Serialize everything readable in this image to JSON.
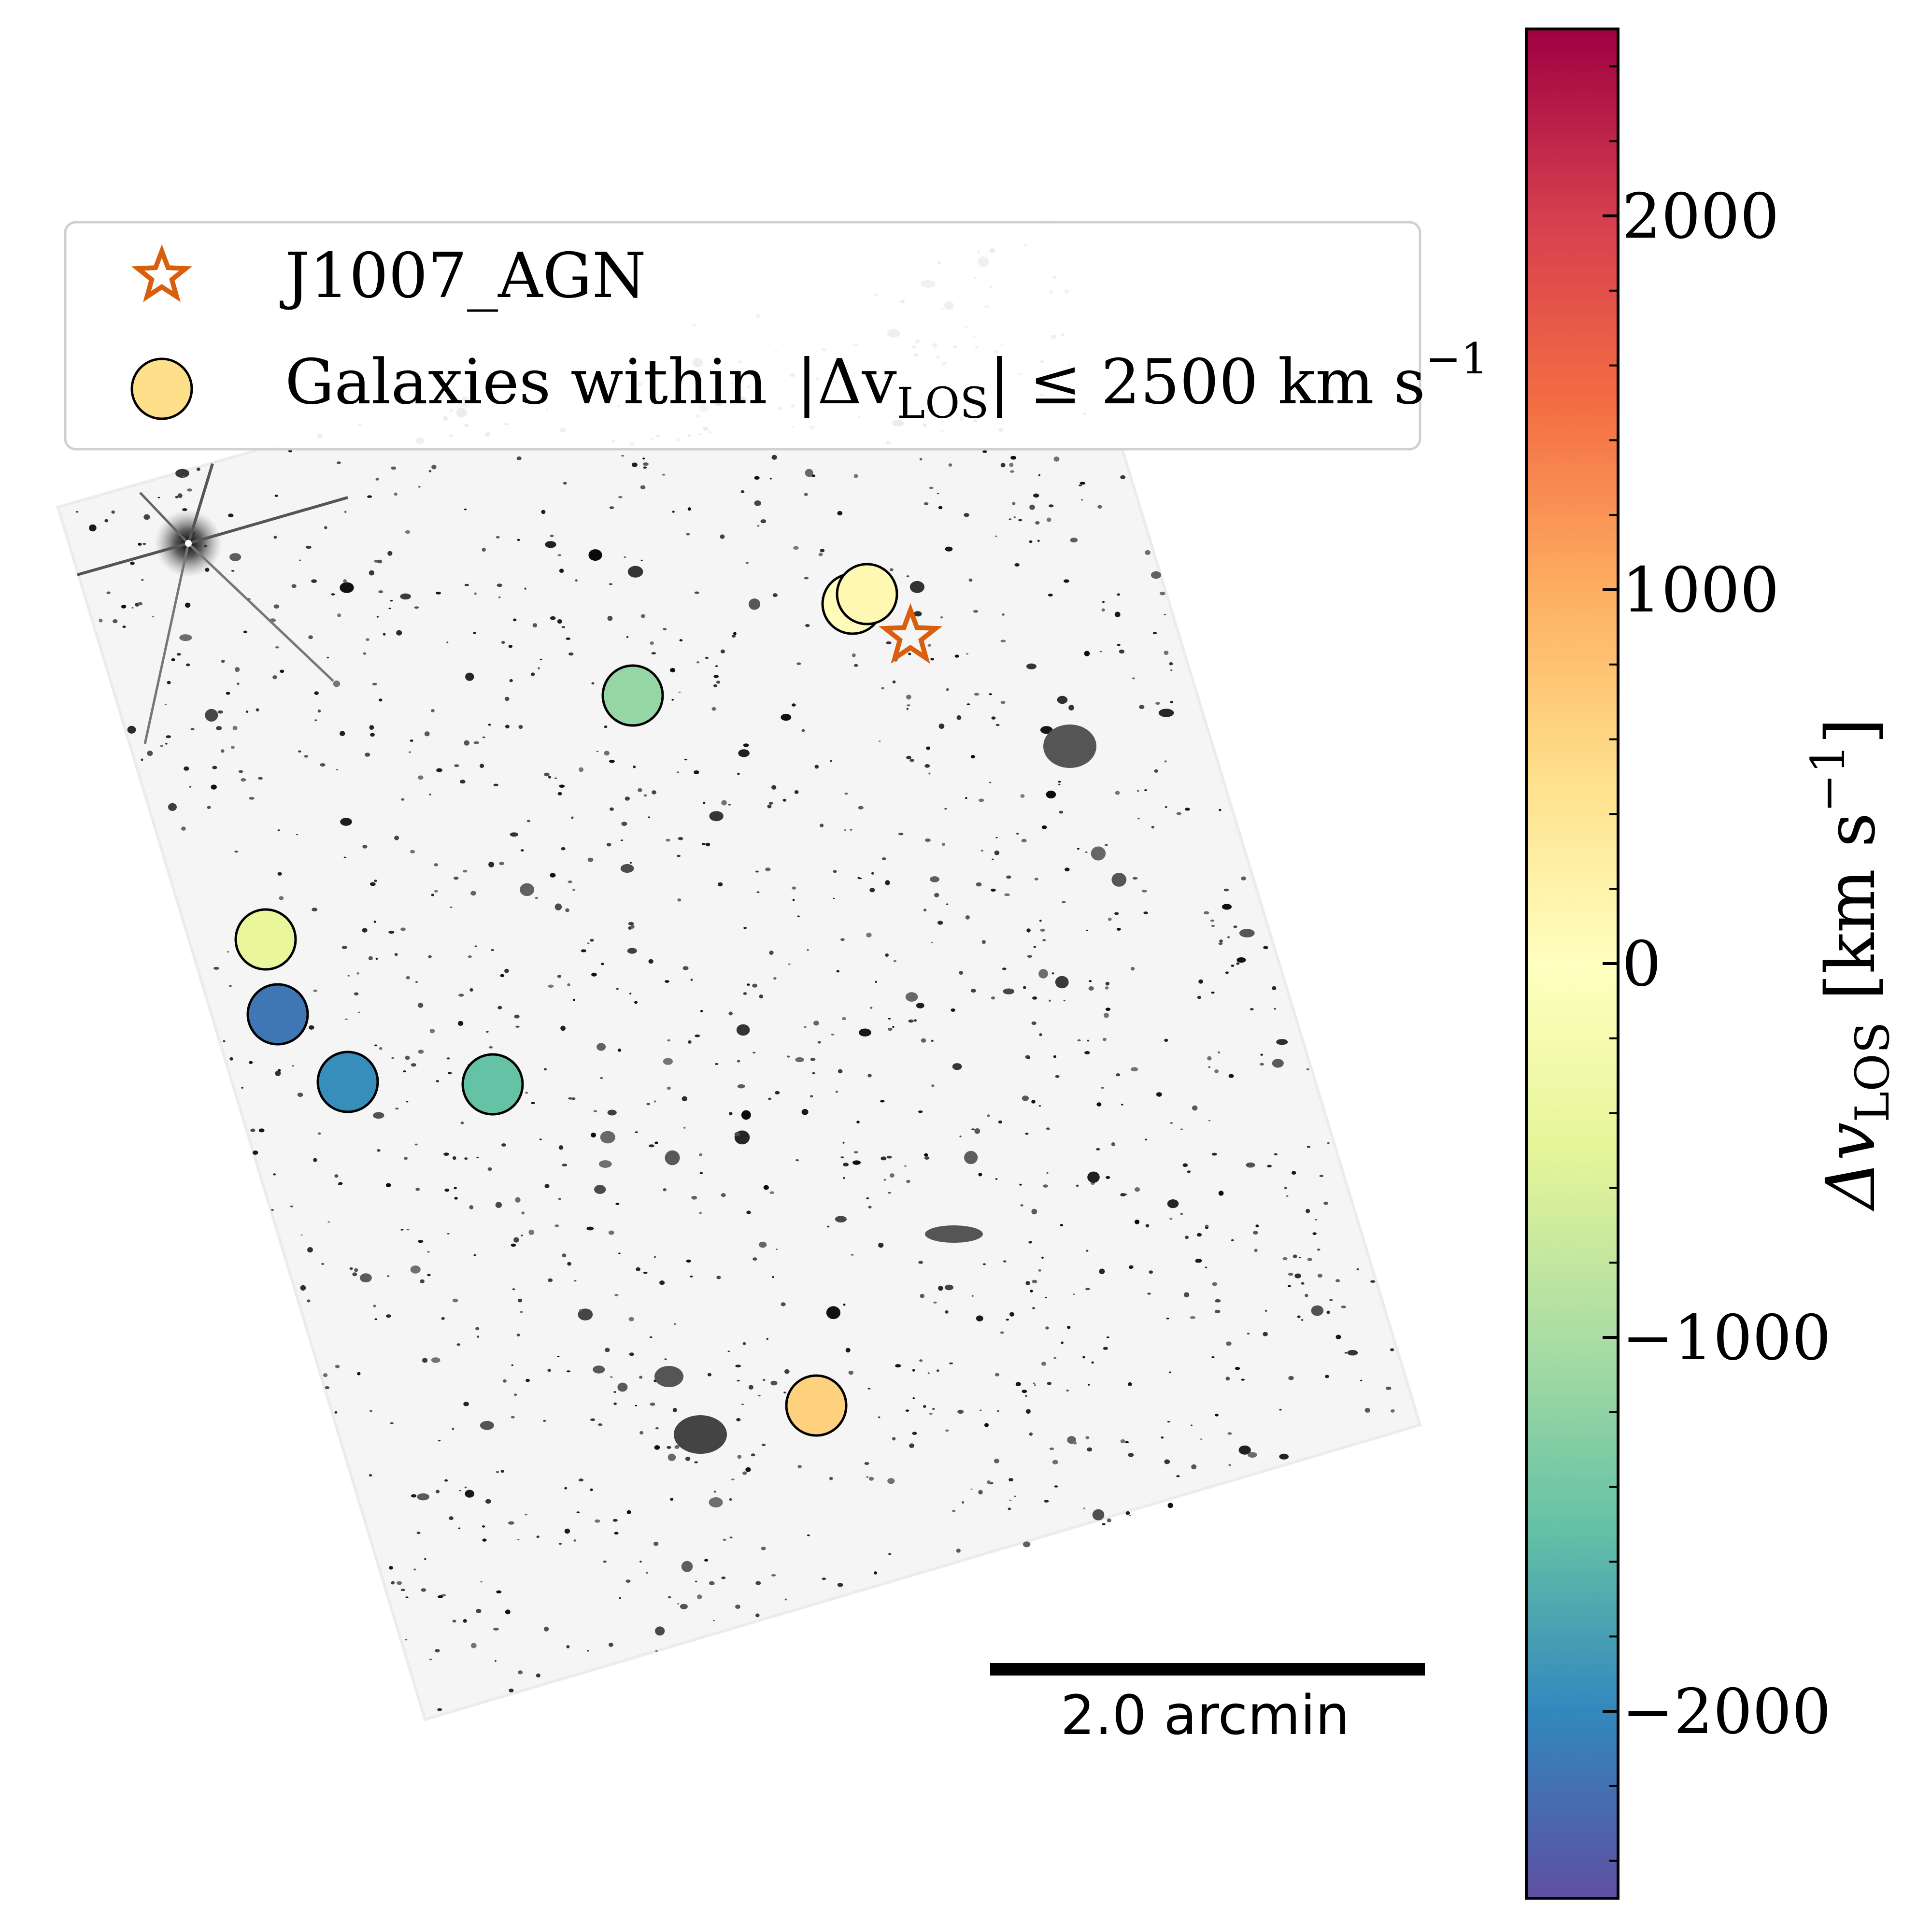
{
  "chart_data": {
    "type": "scatter",
    "title": "",
    "background": "JWST deep-field mosaic (grayscale)",
    "legend": {
      "placement": "top-left",
      "entries": [
        {
          "marker": "star",
          "label": "J1007_AGN",
          "color": "#d95f0e"
        },
        {
          "marker": "circle",
          "label_text": "Galaxies within",
          "label_math": "|Δv_LOS| ≤ 2500 km s^-1",
          "label_prefix": "|Δv",
          "label_sub": "LOS",
          "label_suffix": "| ≤ 2500 km s",
          "label_sup": "−1",
          "color": "#fee08b"
        }
      ]
    },
    "agn": {
      "name": "J1007_AGN",
      "color": "#d95f0e"
    },
    "galaxies": [
      {
        "dv": 50
      },
      {
        "dv": 120
      },
      {
        "dv": -1150
      },
      {
        "dv": -450
      },
      {
        "dv": -2150
      },
      {
        "dv": -1950
      },
      {
        "dv": -1500
      },
      {
        "dv": 650
      }
    ],
    "colorbar": {
      "cmap": "Spectral_r",
      "vmin": -2500,
      "vmax": 2500,
      "ticks": [
        2000,
        1000,
        0,
        -1000,
        -2000
      ],
      "tick_labels": [
        "2000",
        "1000",
        "0",
        "−1000",
        "−2000"
      ],
      "label_prefix": "Δv",
      "label_sub": "LOS",
      "label_units": " [km s",
      "label_sup": "−1",
      "label_close": "]"
    },
    "scalebar": {
      "length": 2.0,
      "unit": "arcmin",
      "label": "2.0 arcmin"
    }
  }
}
